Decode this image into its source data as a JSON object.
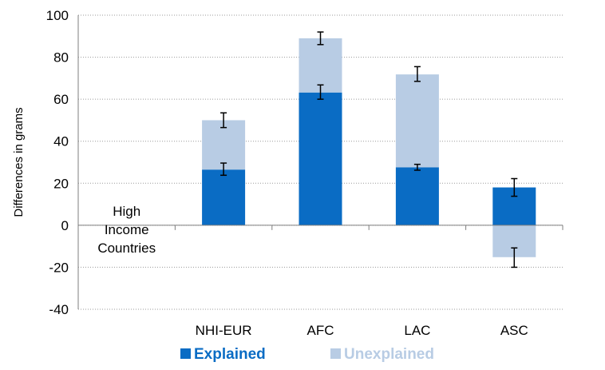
{
  "chart_data": {
    "type": "bar",
    "stacked": true,
    "ylabel": "Differences in grams",
    "ylim": [
      -40,
      100
    ],
    "yticks": [
      100,
      80,
      60,
      40,
      20,
      0,
      -20,
      -40
    ],
    "grid": true,
    "legend_position": "bottom",
    "categories": [
      "NHI-EUR",
      "AFC",
      "LAC",
      "ASC"
    ],
    "reference_label": [
      "High",
      "Income",
      "Countries"
    ],
    "series": [
      {
        "name": "Explained",
        "color": "#0a6cc4",
        "values": [
          26.5,
          63.2,
          27.6,
          18.0
        ],
        "error": [
          [
            23.8,
            29.6
          ],
          [
            60.0,
            66.8
          ],
          [
            26.2,
            29.0
          ],
          [
            13.8,
            22.2
          ]
        ]
      },
      {
        "name": "Unexplained",
        "color": "#b8cce4",
        "values": [
          23.5,
          25.8,
          44.2,
          -15.2
        ],
        "error": [
          [
            46.5,
            53.5
          ],
          [
            86.0,
            92.0
          ],
          [
            68.5,
            75.5
          ],
          [
            -20.0,
            -10.8
          ]
        ]
      }
    ]
  }
}
